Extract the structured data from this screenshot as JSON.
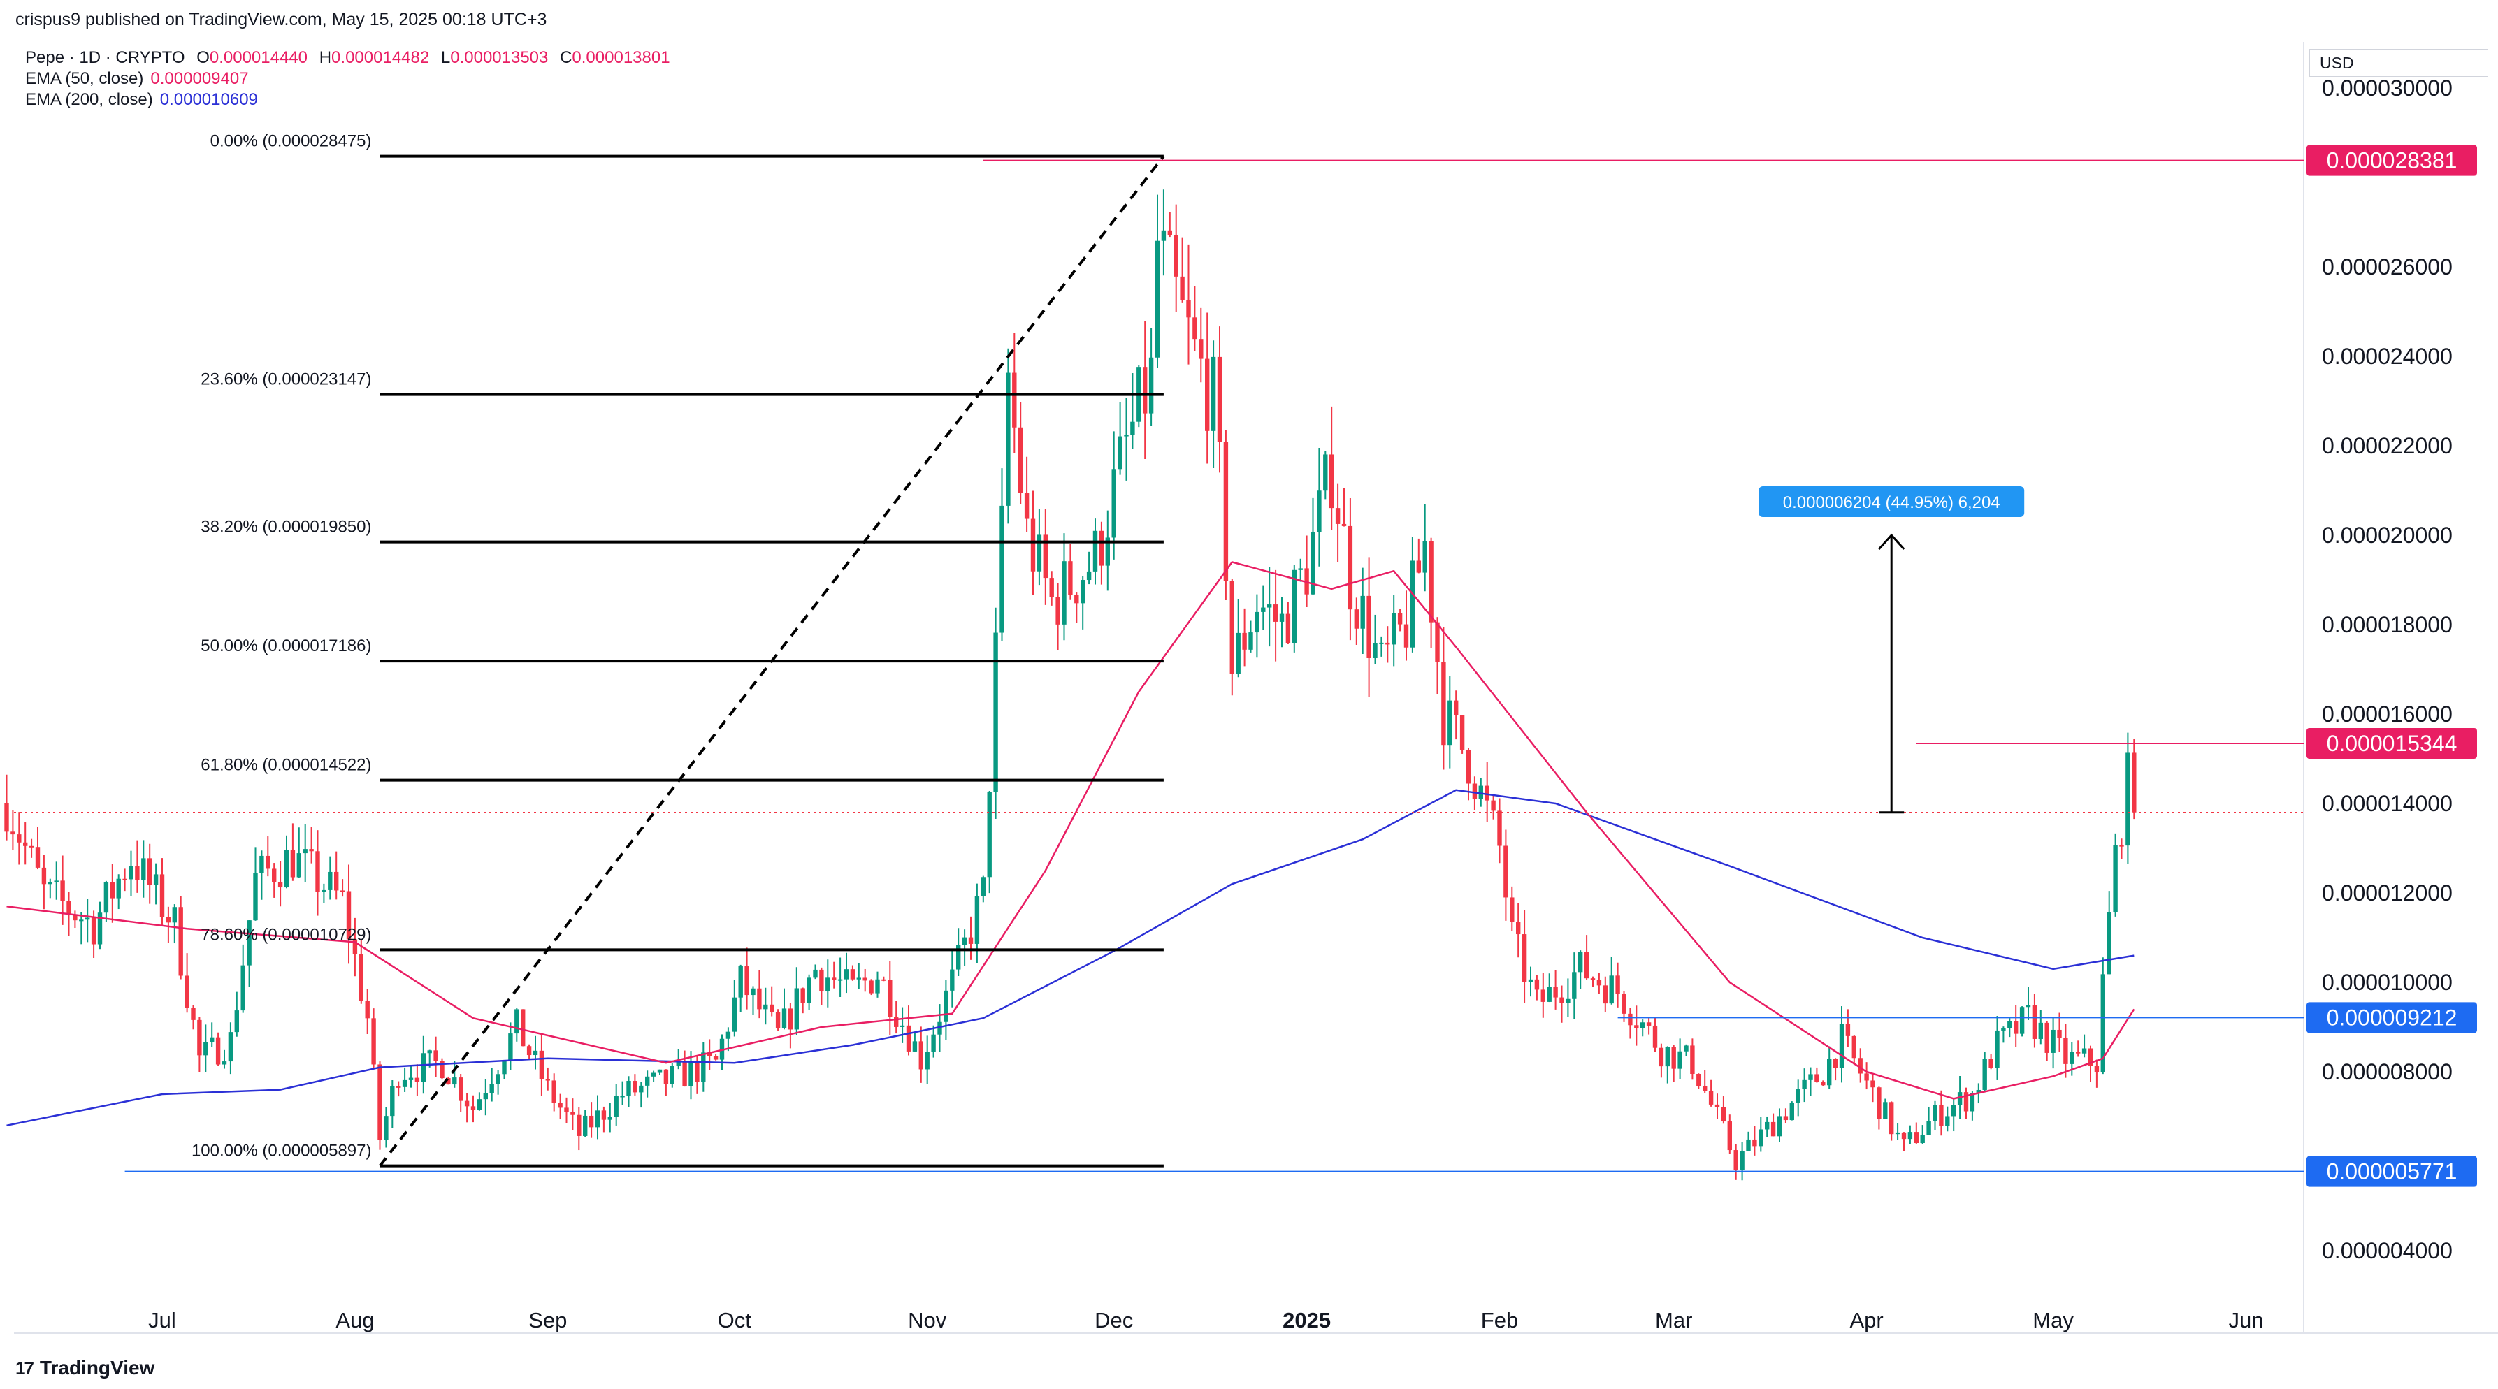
{
  "header": {
    "published": "crispus9 published on TradingView.com, May 15, 2025 00:18 UTC+3"
  },
  "legend": {
    "symbol": "Pepe · 1D · CRYPTO",
    "open_key": "O",
    "open": "0.000014440",
    "high_key": "H",
    "high": "0.000014482",
    "low_key": "L",
    "low": "0.000013503",
    "close_key": "C",
    "close": "0.000013801",
    "ema50_label": "EMA (50, close)",
    "ema50_value": "0.000009407",
    "ema200_label": "EMA (200, close)",
    "ema200_value": "0.000010609"
  },
  "currency_button": "USD",
  "footer": {
    "brand": "TradingView",
    "mark": "17"
  },
  "colors": {
    "up": "#089981",
    "down": "#f23645",
    "ema50": "#e91e63",
    "ema200": "#2b30d6",
    "tag_red": "#e91e63",
    "tag_blue": "#1e6bf2",
    "measure_blue": "#2196f3"
  },
  "chart_data": {
    "type": "candlestick",
    "ylim": [
      3.5e-06,
      3.07e-05
    ],
    "y_ticks": [
      "0.000004000",
      "0.000008000",
      "0.000010000",
      "0.000012000",
      "0.000014000",
      "0.000016000",
      "0.000018000",
      "0.000020000",
      "0.000022000",
      "0.000024000",
      "0.000026000",
      "0.000030000"
    ],
    "x_ticks": [
      {
        "label": "Jul",
        "date": "2024-07-01"
      },
      {
        "label": "Aug",
        "date": "2024-08-01"
      },
      {
        "label": "Sep",
        "date": "2024-09-01"
      },
      {
        "label": "Oct",
        "date": "2024-10-01"
      },
      {
        "label": "Nov",
        "date": "2024-11-01"
      },
      {
        "label": "Dec",
        "date": "2024-12-01"
      },
      {
        "label": "2025",
        "date": "2025-01-01",
        "bold": true
      },
      {
        "label": "Feb",
        "date": "2025-02-01"
      },
      {
        "label": "Mar",
        "date": "2025-03-01"
      },
      {
        "label": "Apr",
        "date": "2025-04-01"
      },
      {
        "label": "May",
        "date": "2025-05-01"
      },
      {
        "label": "Jun",
        "date": "2025-06-01"
      }
    ],
    "price_path": [
      [
        "2024-06-06",
        1.4e-05
      ],
      [
        "2024-06-12",
        1.2e-05
      ],
      [
        "2024-06-20",
        1.13e-05
      ],
      [
        "2024-06-26",
        1.28e-05
      ],
      [
        "2024-07-03",
        1.13e-05
      ],
      [
        "2024-07-07",
        8.3e-06
      ],
      [
        "2024-07-12",
        8.7e-06
      ],
      [
        "2024-07-16",
        1.23e-05
      ],
      [
        "2024-07-22",
        1.28e-05
      ],
      [
        "2024-07-30",
        1.18e-05
      ],
      [
        "2024-08-03",
        9.2e-06
      ],
      [
        "2024-08-05",
        6.5e-06
      ],
      [
        "2024-08-08",
        8e-06
      ],
      [
        "2024-08-15",
        8.2e-06
      ],
      [
        "2024-08-20",
        7.2e-06
      ],
      [
        "2024-08-27",
        9e-06
      ],
      [
        "2024-09-01",
        7.6e-06
      ],
      [
        "2024-09-06",
        6.6e-06
      ],
      [
        "2024-09-13",
        7.5e-06
      ],
      [
        "2024-09-20",
        7.8e-06
      ],
      [
        "2024-09-28",
        8.2e-06
      ],
      [
        "2024-10-02",
        1e-05
      ],
      [
        "2024-10-08",
        8.8e-06
      ],
      [
        "2024-10-14",
        1.03e-05
      ],
      [
        "2024-10-20",
        9.8e-06
      ],
      [
        "2024-10-24",
        1.02e-05
      ],
      [
        "2024-10-31",
        8.3e-06
      ],
      [
        "2024-11-05",
        1e-05
      ],
      [
        "2024-11-10",
        1.2e-05
      ],
      [
        "2024-11-13",
        2e-05
      ],
      [
        "2024-11-14",
        2.35e-05
      ],
      [
        "2024-11-17",
        2e-05
      ],
      [
        "2024-11-21",
        1.85e-05
      ],
      [
        "2024-11-28",
        1.95e-05
      ],
      [
        "2024-12-03",
        2.2e-05
      ],
      [
        "2024-12-07",
        2.35e-05
      ],
      [
        "2024-12-08",
        2.65e-05
      ],
      [
        "2024-12-14",
        2.4e-05
      ],
      [
        "2024-12-17",
        2.3e-05
      ],
      [
        "2024-12-19",
        1.95e-05
      ],
      [
        "2024-12-20",
        1.7e-05
      ],
      [
        "2024-12-24",
        1.85e-05
      ],
      [
        "2024-12-28",
        1.8e-05
      ],
      [
        "2025-01-01",
        1.93e-05
      ],
      [
        "2025-01-05",
        2.15e-05
      ],
      [
        "2025-01-08",
        1.9e-05
      ],
      [
        "2025-01-13",
        1.7e-05
      ],
      [
        "2025-01-17",
        1.8e-05
      ],
      [
        "2025-01-20",
        1.98e-05
      ],
      [
        "2025-01-23",
        1.6e-05
      ],
      [
        "2025-01-27",
        1.5e-05
      ],
      [
        "2025-02-01",
        1.3e-05
      ],
      [
        "2025-02-03",
        1.1e-05
      ],
      [
        "2025-02-07",
        9.5e-06
      ],
      [
        "2025-02-14",
        1.03e-05
      ],
      [
        "2025-02-20",
        9.8e-06
      ],
      [
        "2025-02-27",
        8.5e-06
      ],
      [
        "2025-03-04",
        8.2e-06
      ],
      [
        "2025-03-11",
        6e-06
      ],
      [
        "2025-03-18",
        7e-06
      ],
      [
        "2025-03-25",
        8e-06
      ],
      [
        "2025-03-28",
        8.7e-06
      ],
      [
        "2025-04-02",
        7.5e-06
      ],
      [
        "2025-04-07",
        6.3e-06
      ],
      [
        "2025-04-12",
        7e-06
      ],
      [
        "2025-04-18",
        7.5e-06
      ],
      [
        "2025-04-22",
        8.6e-06
      ],
      [
        "2025-04-27",
        9.2e-06
      ],
      [
        "2025-05-03",
        8.3e-06
      ],
      [
        "2025-05-08",
        8.2e-06
      ],
      [
        "2025-05-09",
        1e-05
      ],
      [
        "2025-05-11",
        1.28e-05
      ],
      [
        "2025-05-13",
        1.45e-05
      ],
      [
        "2025-05-14",
        1.38e-05
      ]
    ],
    "ema50_path": [
      [
        "2024-06-06",
        1.17e-05
      ],
      [
        "2024-07-05",
        1.12e-05
      ],
      [
        "2024-08-01",
        1.09e-05
      ],
      [
        "2024-08-20",
        9.2e-06
      ],
      [
        "2024-09-20",
        8.2e-06
      ],
      [
        "2024-10-15",
        9e-06
      ],
      [
        "2024-11-05",
        9.3e-06
      ],
      [
        "2024-11-20",
        1.25e-05
      ],
      [
        "2024-12-05",
        1.65e-05
      ],
      [
        "2024-12-20",
        1.94e-05
      ],
      [
        "2025-01-05",
        1.88e-05
      ],
      [
        "2025-01-15",
        1.92e-05
      ],
      [
        "2025-01-25",
        1.75e-05
      ],
      [
        "2025-02-15",
        1.38e-05
      ],
      [
        "2025-03-10",
        1e-05
      ],
      [
        "2025-04-01",
        8e-06
      ],
      [
        "2025-04-15",
        7.4e-06
      ],
      [
        "2025-05-01",
        7.9e-06
      ],
      [
        "2025-05-09",
        8.3e-06
      ],
      [
        "2025-05-14",
        9.4e-06
      ]
    ],
    "ema200_path": [
      [
        "2024-06-06",
        6.8e-06
      ],
      [
        "2024-07-01",
        7.5e-06
      ],
      [
        "2024-07-20",
        7.6e-06
      ],
      [
        "2024-08-05",
        8.1e-06
      ],
      [
        "2024-09-01",
        8.3e-06
      ],
      [
        "2024-10-01",
        8.2e-06
      ],
      [
        "2024-10-20",
        8.6e-06
      ],
      [
        "2024-11-10",
        9.2e-06
      ],
      [
        "2024-12-01",
        1.07e-05
      ],
      [
        "2024-12-20",
        1.22e-05
      ],
      [
        "2025-01-10",
        1.32e-05
      ],
      [
        "2025-01-25",
        1.43e-05
      ],
      [
        "2025-02-10",
        1.4e-05
      ],
      [
        "2025-03-10",
        1.26e-05
      ],
      [
        "2025-04-10",
        1.1e-05
      ],
      [
        "2025-05-01",
        1.03e-05
      ],
      [
        "2025-05-14",
        1.06e-05
      ]
    ],
    "last_price": 1.3801e-05,
    "fib_levels": [
      {
        "label": "0.00% (0.000028475)",
        "price": 2.8475e-05
      },
      {
        "label": "23.60% (0.000023147)",
        "price": 2.3147e-05
      },
      {
        "label": "38.20% (0.000019850)",
        "price": 1.985e-05
      },
      {
        "label": "50.00% (0.000017186)",
        "price": 1.7186e-05
      },
      {
        "label": "61.80% (0.000014522)",
        "price": 1.4522e-05
      },
      {
        "label": "78.60% (0.000010729)",
        "price": 1.0729e-05
      },
      {
        "label": "100.00% (0.000005897)",
        "price": 5.897e-06
      }
    ],
    "fib_range": {
      "start_date": "2024-08-05",
      "end_date": "2024-12-09"
    },
    "horizontal_lines": [
      {
        "label": "0.000028381",
        "price": 2.8381e-05,
        "color": "red",
        "from": "2024-11-10"
      },
      {
        "label": "0.000015344",
        "price": 1.5344e-05,
        "color": "red",
        "from": "2025-04-09"
      },
      {
        "label": "0.000009212",
        "price": 9.212e-06,
        "color": "blue",
        "from": "2025-02-20"
      },
      {
        "label": "0.000005771",
        "price": 5.771e-06,
        "color": "blue",
        "from": "2024-06-25"
      }
    ],
    "measure": {
      "label": "0.000006204 (44.95%) 6,204",
      "date": "2025-04-05",
      "from_price": 1.3801e-05,
      "to_price": 2e-05
    }
  }
}
